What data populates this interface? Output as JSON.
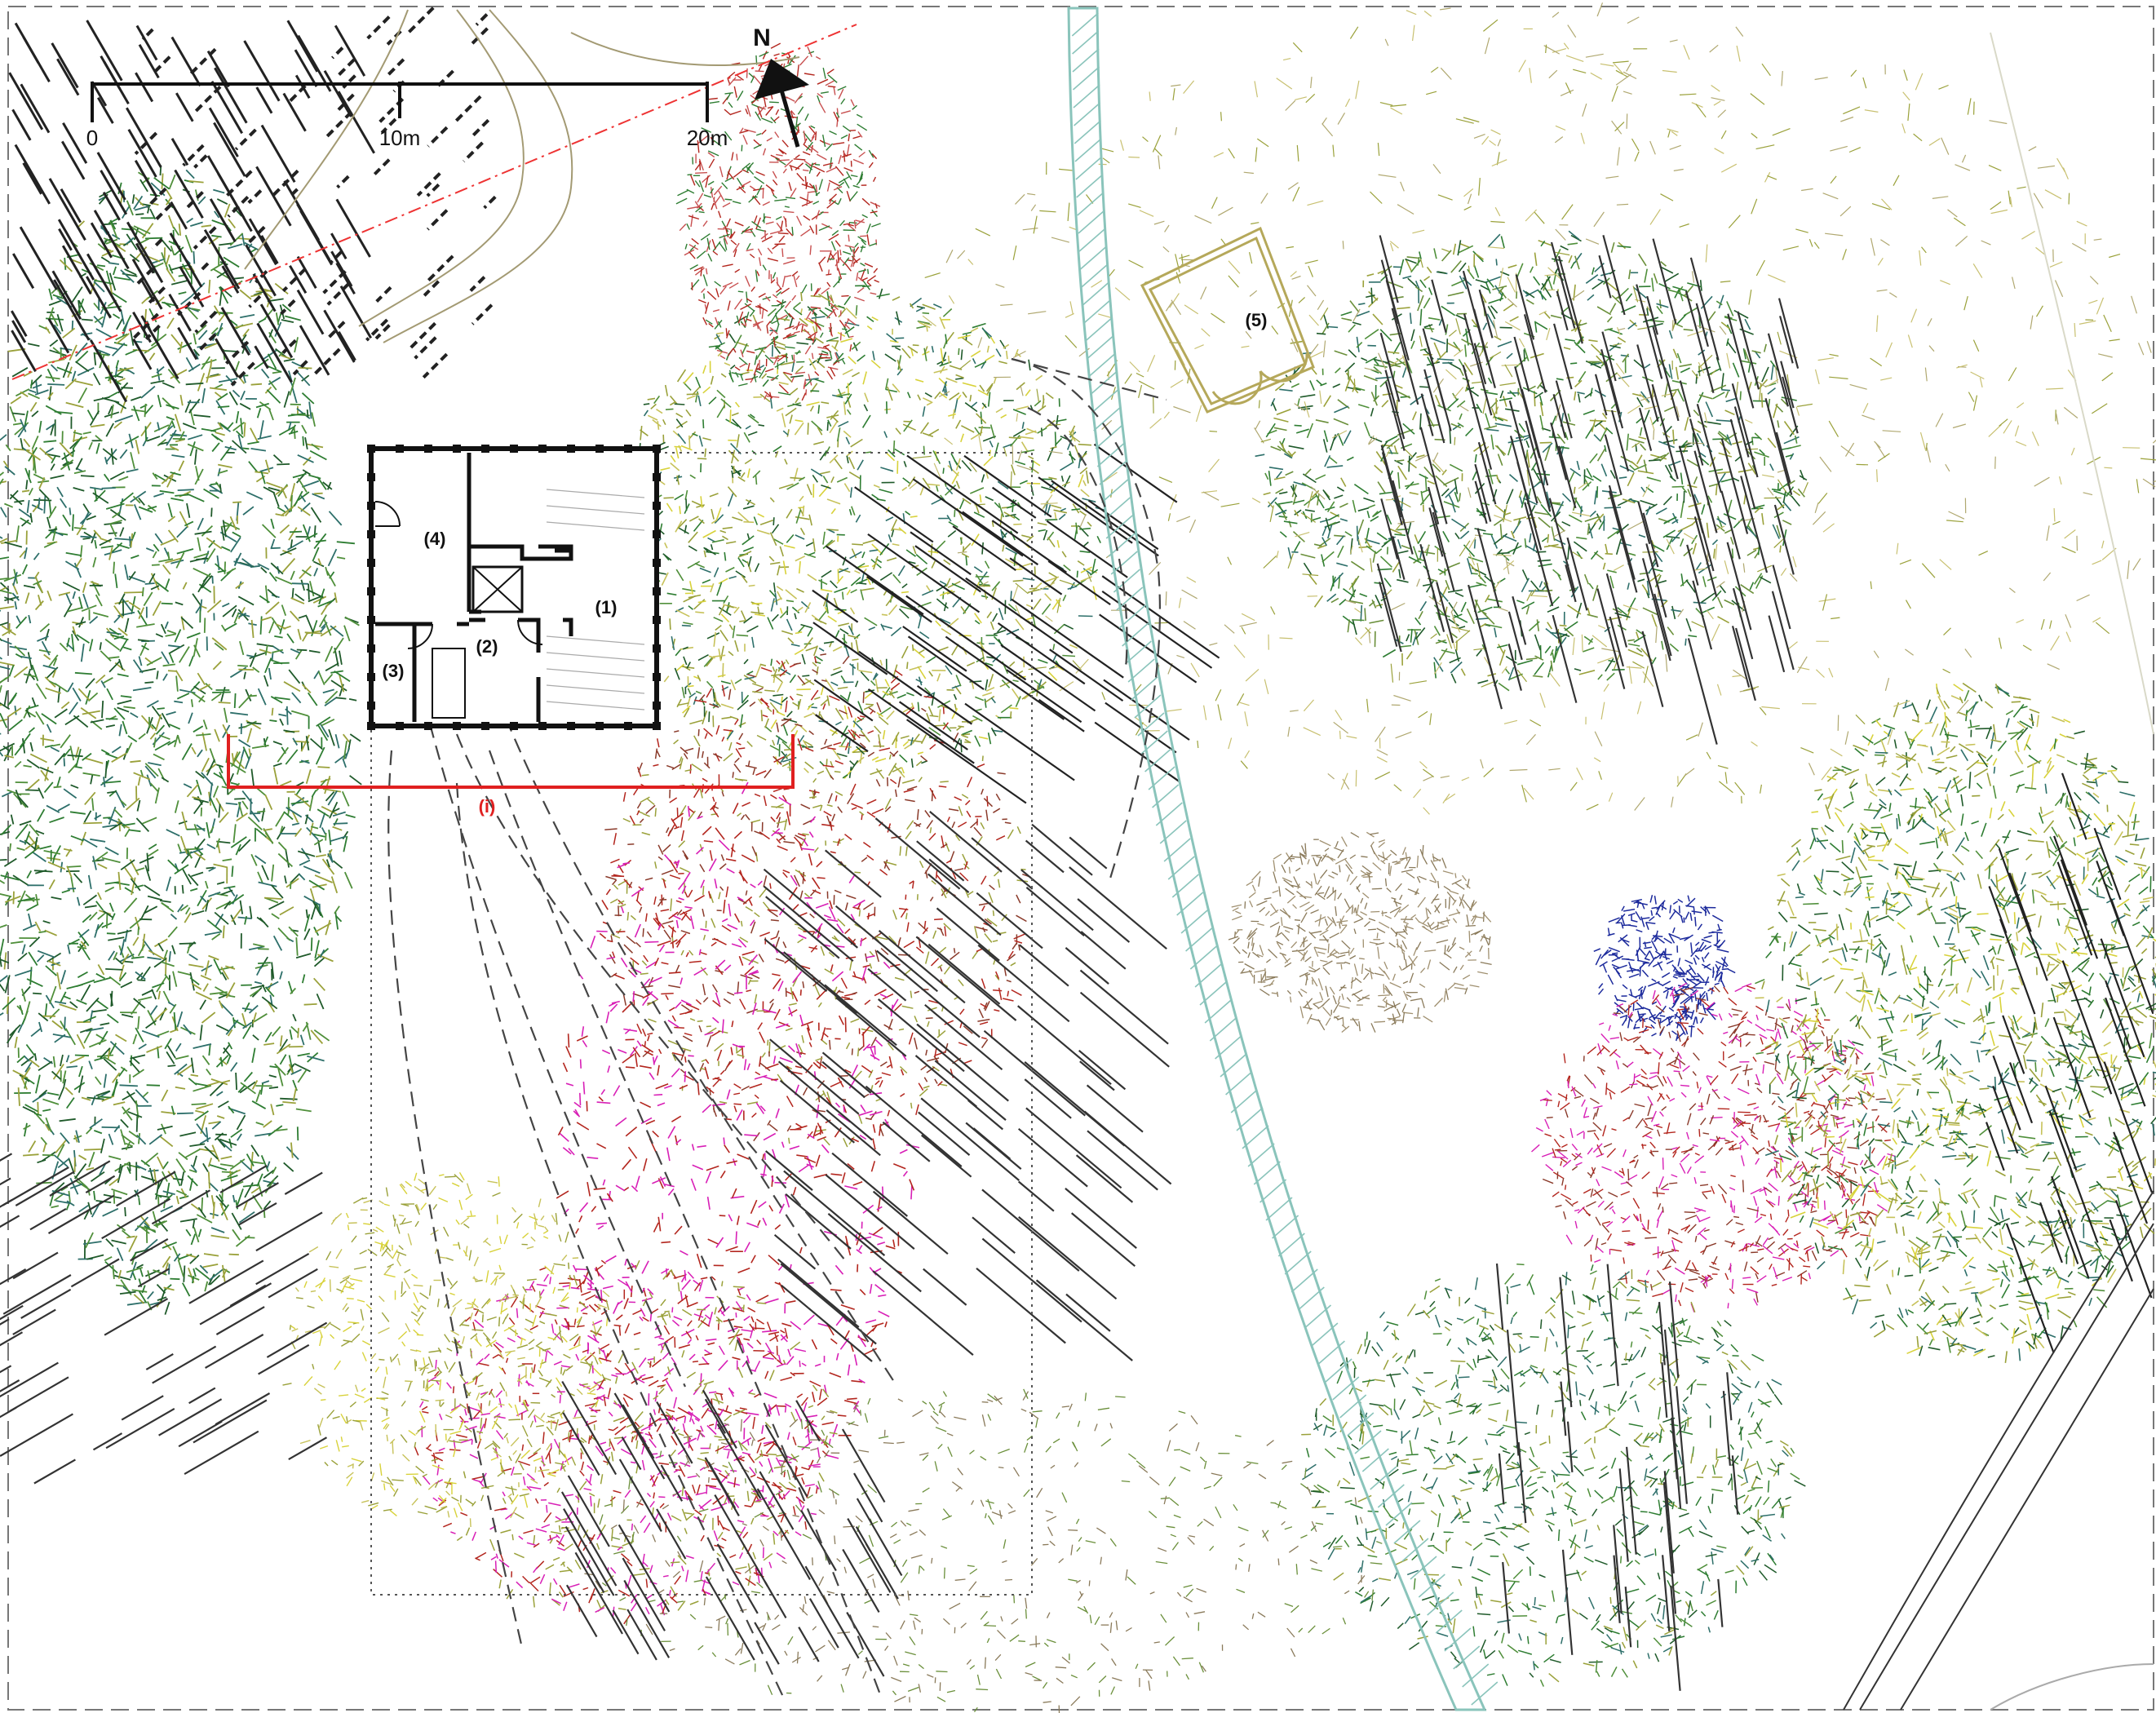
{
  "scale_bar": {
    "labels": [
      "0",
      "10m",
      "20m"
    ]
  },
  "north_arrow": {
    "label": "N"
  },
  "rooms": {
    "r1": "(1)",
    "r2": "(2)",
    "r3": "(3)",
    "r4": "(4)",
    "r5": "(5)"
  },
  "section_marker": {
    "label": "(i)"
  },
  "colors": {
    "foliage_green": "#2e7d32",
    "foliage_olive": "#9aa13a",
    "foliage_yellow": "#d8d23a",
    "bloom_magenta": "#d81fb6",
    "bloom_red": "#b3261e",
    "bloom_blue": "#1c2a9c",
    "ground_tan": "#8a7a5a",
    "section_red": "#e02020",
    "path_hatch": "#8ac4bb",
    "pavilion": "#b5a85a",
    "ink": "#111111"
  }
}
